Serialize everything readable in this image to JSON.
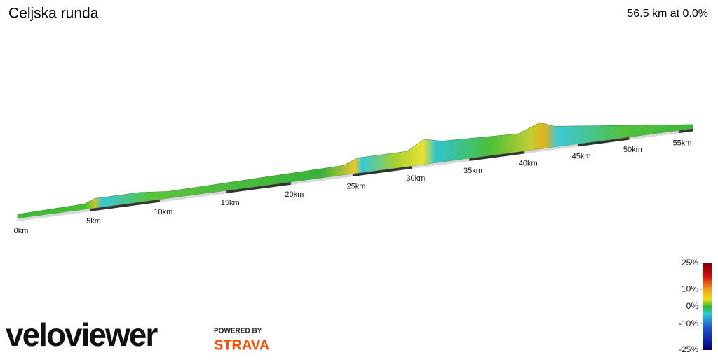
{
  "chart_data": {
    "type": "profile",
    "title": "Celjska runda",
    "subtitle": "56.5 km at 0.0%",
    "xlim": [
      0,
      56.5
    ],
    "xticks": [
      {
        "value": 0,
        "label": "0km"
      },
      {
        "value": 5,
        "label": "5km"
      },
      {
        "value": 10,
        "label": "10km"
      },
      {
        "value": 15,
        "label": "15km"
      },
      {
        "value": 20,
        "label": "20km"
      },
      {
        "value": 25,
        "label": "25km"
      },
      {
        "value": 30,
        "label": "30km"
      },
      {
        "value": 35,
        "label": "35km"
      },
      {
        "value": 40,
        "label": "40km"
      },
      {
        "value": 45,
        "label": "45km"
      },
      {
        "value": 50,
        "label": "50km"
      },
      {
        "value": 55,
        "label": "55km"
      }
    ],
    "colorbar_lim": [
      -25,
      25
    ],
    "colorbar_ticks": [
      {
        "value": 25,
        "label": "25%"
      },
      {
        "value": 10,
        "label": "10%"
      },
      {
        "value": 0,
        "label": "0%"
      },
      {
        "value": -10,
        "label": "-10%"
      },
      {
        "value": -25,
        "label": "-25%"
      }
    ],
    "brand": "veloviewer",
    "powered_by": "POWERED BY",
    "partner": "STRAVA"
  }
}
